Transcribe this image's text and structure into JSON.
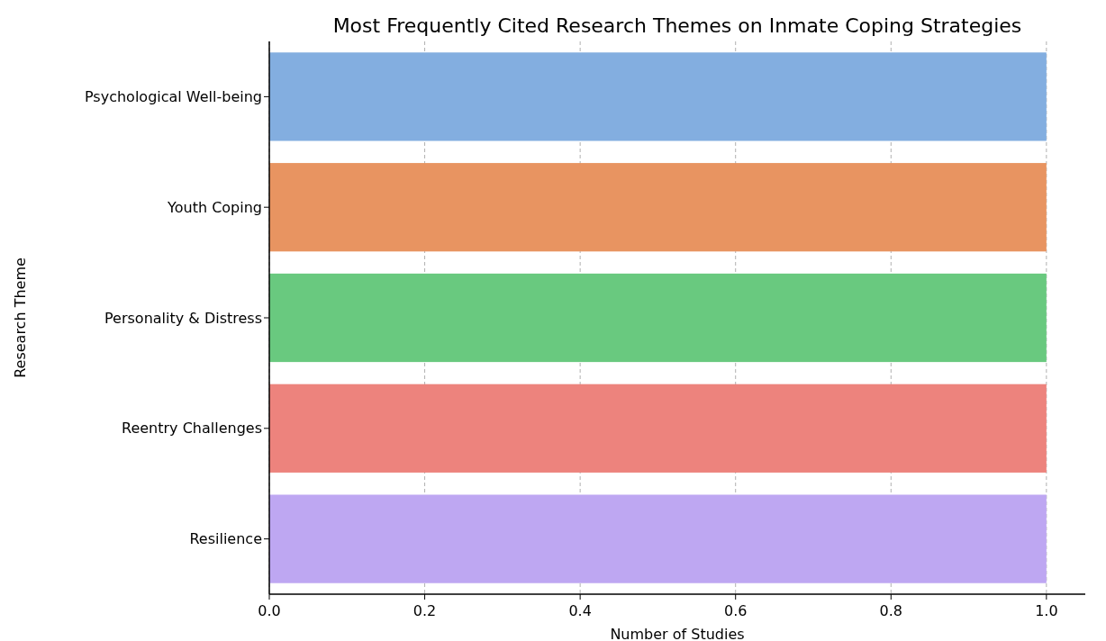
{
  "chart_data": {
    "type": "bar",
    "orientation": "horizontal",
    "title": "Most Frequently Cited Research Themes on Inmate Coping Strategies",
    "xlabel": "Number of Studies",
    "ylabel": "Research Theme",
    "categories": [
      "Psychological Well-being",
      "Youth Coping",
      "Personality & Distress",
      "Reentry Challenges",
      "Resilience"
    ],
    "values": [
      1,
      1,
      1,
      1,
      1
    ],
    "colors": [
      "#83aee0",
      "#e89461",
      "#69c97f",
      "#ed837d",
      "#bea7f2"
    ],
    "xlim": [
      0,
      1.05
    ],
    "xticks": [
      {
        "value": 0,
        "label": "0.0"
      },
      {
        "value": 0.2,
        "label": "0.2"
      },
      {
        "value": 0.4,
        "label": "0.4"
      },
      {
        "value": 0.6,
        "label": "0.6"
      },
      {
        "value": 0.8,
        "label": "0.8"
      },
      {
        "value": 1,
        "label": "1.0"
      }
    ],
    "grid": "x"
  }
}
